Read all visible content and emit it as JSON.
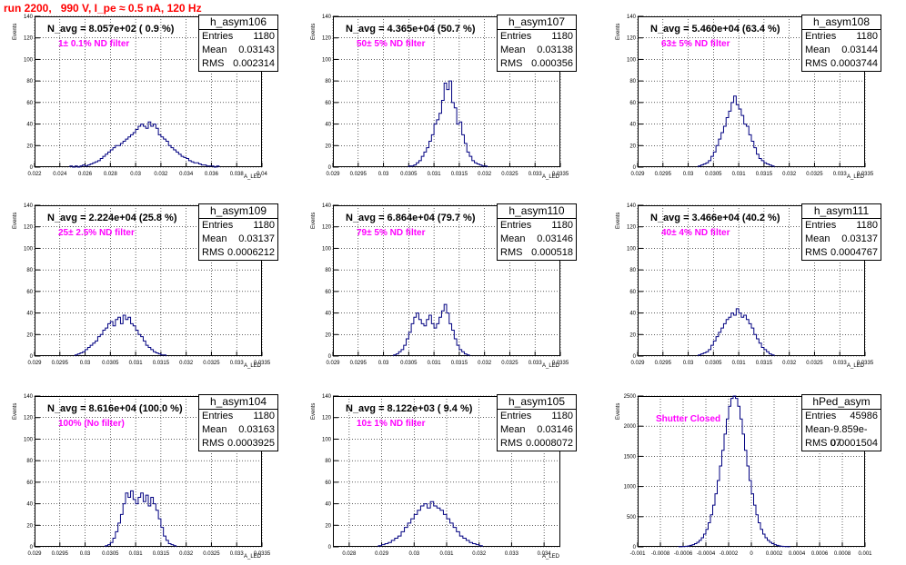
{
  "title": "run 2200,   990 V, I_pe ≈ 0.5 nA, 120 Hz",
  "chart_data": [
    {
      "type": "histogram",
      "name": "h_asym106",
      "stats": {
        "entries": "1180",
        "mean": "0.03143",
        "rms": "0.002314"
      },
      "annotation": "N_avg = 8.057e+02 ( 0.9 %)",
      "filter": "1± 0.1% ND filter",
      "ylabel": "Events",
      "xlabel": "A_LED",
      "xlim": [
        0.022,
        0.04
      ],
      "ylim": [
        0,
        140
      ],
      "xticks": [
        "0.022",
        "0.024",
        "0.026",
        "0.028",
        "0.03",
        "0.032",
        "0.034",
        "0.036",
        "0.038",
        "0.04"
      ],
      "yticks": [
        "0",
        "20",
        "40",
        "60",
        "80",
        "100",
        "120",
        "140"
      ],
      "bins": {
        "x0": 0.0248,
        "width": 0.0002,
        "values": [
          1,
          0,
          1,
          0,
          1,
          2,
          1,
          2,
          3,
          4,
          5,
          6,
          8,
          10,
          12,
          14,
          16,
          18,
          20,
          20,
          22,
          24,
          26,
          28,
          30,
          32,
          35,
          38,
          40,
          38,
          36,
          42,
          38,
          40,
          36,
          30,
          28,
          26,
          24,
          20,
          18,
          16,
          14,
          12,
          10,
          9,
          8,
          6,
          5,
          4,
          4,
          3,
          2,
          2,
          1,
          1,
          1,
          0,
          1
        ]
      }
    },
    {
      "type": "histogram",
      "name": "h_asym107",
      "stats": {
        "entries": "1180",
        "mean": "0.03138",
        "rms": "0.000356"
      },
      "annotation": "N_avg = 4.365e+04 (50.7 %)",
      "filter": "50± 5% ND filter",
      "ylabel": "Events",
      "xlabel": "A_LED",
      "xlim": [
        0.029,
        0.0335
      ],
      "ylim": [
        0,
        140
      ],
      "xticks": [
        "0.029",
        "0.0295",
        "0.03",
        "0.0305",
        "0.031",
        "0.0315",
        "0.032",
        "0.0325",
        "0.033",
        "0.0335"
      ],
      "yticks": [
        "0",
        "20",
        "40",
        "60",
        "80",
        "100",
        "120",
        "140"
      ],
      "bins": {
        "x0": 0.0305,
        "width": 5e-05,
        "values": [
          1,
          1,
          2,
          4,
          6,
          10,
          14,
          18,
          24,
          30,
          40,
          44,
          50,
          62,
          78,
          72,
          80,
          60,
          55,
          40,
          42,
          30,
          22,
          14,
          10,
          6,
          4,
          3,
          2,
          1,
          1
        ]
      }
    },
    {
      "type": "histogram",
      "name": "h_asym108",
      "stats": {
        "entries": "1180",
        "mean": "0.03144",
        "rms": "0.0003744"
      },
      "annotation": "N_avg = 5.460e+04 (63.4 %)",
      "filter": "63± 5% ND filter",
      "ylabel": "Events",
      "xlabel": "A_LED",
      "xlim": [
        0.029,
        0.0335
      ],
      "ylim": [
        0,
        140
      ],
      "xticks": [
        "0.029",
        "0.0295",
        "0.03",
        "0.0305",
        "0.031",
        "0.0315",
        "0.032",
        "0.0325",
        "0.033",
        "0.0335"
      ],
      "yticks": [
        "0",
        "20",
        "40",
        "60",
        "80",
        "100",
        "120",
        "140"
      ],
      "bins": {
        "x0": 0.0302,
        "width": 5e-05,
        "values": [
          1,
          2,
          3,
          4,
          6,
          10,
          14,
          20,
          26,
          32,
          38,
          46,
          52,
          60,
          66,
          58,
          54,
          48,
          40,
          38,
          30,
          24,
          18,
          12,
          8,
          6,
          4,
          3,
          2,
          1
        ]
      }
    },
    {
      "type": "histogram",
      "name": "h_asym109",
      "stats": {
        "entries": "1180",
        "mean": "0.03137",
        "rms": "0.0006212"
      },
      "annotation": "N_avg = 2.224e+04 (25.8 %)",
      "filter": "25± 2.5% ND filter",
      "ylabel": "Events",
      "xlabel": "A_LED",
      "xlim": [
        0.029,
        0.0335
      ],
      "ylim": [
        0,
        140
      ],
      "xticks": [
        "0.029",
        "0.0295",
        "0.03",
        "0.0305",
        "0.031",
        "0.0315",
        "0.032",
        "0.0325",
        "0.033",
        "0.0335"
      ],
      "yticks": [
        "0",
        "20",
        "40",
        "60",
        "80",
        "100",
        "120",
        "140"
      ],
      "bins": {
        "x0": 0.0298,
        "width": 5e-05,
        "values": [
          1,
          2,
          3,
          4,
          6,
          8,
          10,
          12,
          14,
          18,
          20,
          24,
          26,
          30,
          32,
          28,
          34,
          36,
          30,
          38,
          34,
          36,
          30,
          28,
          24,
          20,
          18,
          14,
          10,
          8,
          6,
          4,
          3,
          2,
          1,
          1
        ]
      }
    },
    {
      "type": "histogram",
      "name": "h_asym110",
      "stats": {
        "entries": "1180",
        "mean": "0.03146",
        "rms": "0.000518"
      },
      "annotation": "N_avg = 6.864e+04 (79.7 %)",
      "filter": "79± 5% ND filter",
      "ylabel": "Events",
      "xlabel": "A_LED",
      "xlim": [
        0.029,
        0.0335
      ],
      "ylim": [
        0,
        140
      ],
      "xticks": [
        "0.029",
        "0.0295",
        "0.03",
        "0.0305",
        "0.031",
        "0.0315",
        "0.032",
        "0.0325",
        "0.033",
        "0.0335"
      ],
      "yticks": [
        "0",
        "20",
        "40",
        "60",
        "80",
        "100",
        "120",
        "140"
      ],
      "bins": {
        "x0": 0.0302,
        "width": 5e-05,
        "values": [
          1,
          2,
          4,
          6,
          10,
          16,
          22,
          30,
          36,
          40,
          34,
          30,
          28,
          34,
          38,
          30,
          26,
          30,
          36,
          42,
          48,
          40,
          30,
          24,
          16,
          10,
          6,
          4,
          2,
          1
        ]
      }
    },
    {
      "type": "histogram",
      "name": "h_asym111",
      "stats": {
        "entries": "1180",
        "mean": "0.03137",
        "rms": "0.0004767"
      },
      "annotation": "N_avg = 3.466e+04 (40.2 %)",
      "filter": "40± 4% ND filter",
      "ylabel": "Events",
      "xlabel": "A_LED",
      "xlim": [
        0.029,
        0.0335
      ],
      "ylim": [
        0,
        140
      ],
      "xticks": [
        "0.029",
        "0.0295",
        "0.03",
        "0.0305",
        "0.031",
        "0.0315",
        "0.032",
        "0.0325",
        "0.033",
        "0.0335"
      ],
      "yticks": [
        "0",
        "20",
        "40",
        "60",
        "80",
        "100",
        "120",
        "140"
      ],
      "bins": {
        "x0": 0.0302,
        "width": 5e-05,
        "values": [
          1,
          2,
          3,
          4,
          6,
          10,
          14,
          18,
          22,
          26,
          30,
          34,
          36,
          40,
          38,
          44,
          40,
          36,
          38,
          34,
          30,
          26,
          20,
          16,
          12,
          8,
          6,
          4,
          2,
          1
        ]
      }
    },
    {
      "type": "histogram",
      "name": "h_asym104",
      "stats": {
        "entries": "1180",
        "mean": "0.03163",
        "rms": "0.0003925"
      },
      "annotation": "N_avg = 8.616e+04 (100.0 %)",
      "filter": "100% (No filter)",
      "ylabel": "Events",
      "xlabel": "A_LED",
      "xlim": [
        0.029,
        0.0335
      ],
      "ylim": [
        0,
        140
      ],
      "xticks": [
        "0.029",
        "0.0295",
        "0.03",
        "0.0305",
        "0.031",
        "0.0315",
        "0.032",
        "0.0325",
        "0.033",
        "0.0335"
      ],
      "yticks": [
        "0",
        "20",
        "40",
        "60",
        "80",
        "100",
        "120",
        "140"
      ],
      "bins": {
        "x0": 0.0304,
        "width": 5e-05,
        "values": [
          1,
          2,
          4,
          8,
          14,
          22,
          30,
          40,
          50,
          46,
          52,
          44,
          40,
          46,
          50,
          42,
          48,
          38,
          46,
          40,
          34,
          26,
          18,
          10,
          6,
          3,
          2,
          1
        ]
      }
    },
    {
      "type": "histogram",
      "name": "h_asym105",
      "stats": {
        "entries": "1180",
        "mean": "0.03146",
        "rms": "0.0008072"
      },
      "annotation": "N_avg = 8.122e+03 ( 9.4 %)",
      "filter": "10± 1% ND filter",
      "ylabel": "Events",
      "xlabel": "A_LED",
      "xlim": [
        0.0275,
        0.0345
      ],
      "ylim": [
        0,
        140
      ],
      "xticks": [
        "0.028",
        "0.029",
        "0.03",
        "0.031",
        "0.032",
        "0.033",
        "0.034"
      ],
      "yticks": [
        "0",
        "20",
        "40",
        "60",
        "80",
        "100",
        "120",
        "140"
      ],
      "bins": {
        "x0": 0.0289,
        "width": 0.0001,
        "values": [
          1,
          2,
          3,
          4,
          6,
          8,
          10,
          14,
          18,
          22,
          26,
          30,
          34,
          38,
          40,
          36,
          42,
          38,
          36,
          34,
          30,
          26,
          22,
          18,
          14,
          10,
          8,
          6,
          4,
          3,
          2,
          1
        ]
      }
    },
    {
      "type": "histogram",
      "name": "hPed_asym",
      "stats": {
        "entries": "45986",
        "mean": "-9.859e-07",
        "rms": "0.0001504"
      },
      "annotation": "",
      "filter": "Shutter Closed",
      "ylabel": "Events",
      "xlabel": "",
      "xlim": [
        -0.001,
        0.001
      ],
      "ylim": [
        0,
        2500
      ],
      "xticks": [
        "-0.001",
        "-0.0008",
        "-0.0006",
        "-0.0004",
        "-0.0002",
        "0",
        "0.0002",
        "0.0004",
        "0.0006",
        "0.0008",
        "0.001"
      ],
      "yticks": [
        "0",
        "500",
        "1000",
        "1500",
        "2000",
        "2500"
      ],
      "bins": {
        "x0": -0.00064,
        "width": 2e-05,
        "values": [
          2,
          4,
          6,
          10,
          16,
          24,
          36,
          52,
          76,
          108,
          150,
          210,
          290,
          400,
          530,
          690,
          880,
          1100,
          1340,
          1600,
          1870,
          2120,
          2330,
          2460,
          2500,
          2460,
          2330,
          2120,
          1870,
          1600,
          1340,
          1100,
          880,
          690,
          530,
          400,
          290,
          210,
          150,
          108,
          76,
          52,
          36,
          24,
          16,
          10,
          6,
          4,
          2
        ]
      }
    }
  ]
}
